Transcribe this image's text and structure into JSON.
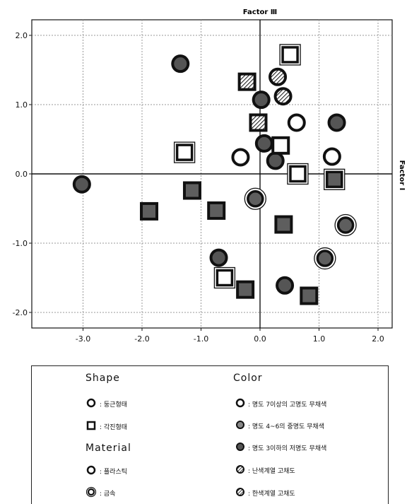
{
  "chart_data": {
    "type": "scatter",
    "xlabel": "",
    "ylabel": "",
    "top_axis_label": "Factor Ⅲ",
    "right_axis_label": "Factor Ⅰ",
    "xlim": [
      -3.9,
      2.4
    ],
    "ylim": [
      -2.2,
      2.2
    ],
    "xticks": [
      -3.0,
      -2.0,
      -1.0,
      0.0,
      1.0,
      2.0
    ],
    "yticks": [
      -2.0,
      -1.0,
      0.0,
      1.0,
      2.0
    ],
    "xtick_labels": [
      "-3.0",
      "-2.0",
      "-1.0",
      "0.0",
      "1.0",
      "2.0"
    ],
    "ytick_labels": [
      "-2.0",
      "-1.0",
      "0.0",
      "1.0",
      "2.0"
    ],
    "grid": true,
    "points": [
      {
        "x": -3.02,
        "y": -0.15,
        "shape": "circle",
        "material": "plastic",
        "color": "dark"
      },
      {
        "x": -1.35,
        "y": 1.59,
        "shape": "circle",
        "material": "plastic",
        "color": "dark"
      },
      {
        "x": -0.33,
        "y": 0.24,
        "shape": "circle",
        "material": "plastic",
        "color": "white"
      },
      {
        "x": 0.02,
        "y": 1.07,
        "shape": "circle",
        "material": "plastic",
        "color": "dark"
      },
      {
        "x": 0.07,
        "y": 0.44,
        "shape": "circle",
        "material": "plastic",
        "color": "dark"
      },
      {
        "x": 0.26,
        "y": 0.19,
        "shape": "circle",
        "material": "plastic",
        "color": "dark"
      },
      {
        "x": 0.3,
        "y": 1.4,
        "shape": "circle",
        "material": "plastic",
        "color": "cool"
      },
      {
        "x": 0.39,
        "y": 1.12,
        "shape": "circle",
        "material": "plastic",
        "color": "warm"
      },
      {
        "x": 0.62,
        "y": 0.74,
        "shape": "circle",
        "material": "plastic",
        "color": "white"
      },
      {
        "x": 1.22,
        "y": 0.25,
        "shape": "circle",
        "material": "plastic",
        "color": "white"
      },
      {
        "x": 1.3,
        "y": 0.74,
        "shape": "circle",
        "material": "plastic",
        "color": "dark"
      },
      {
        "x": -0.7,
        "y": -1.21,
        "shape": "circle",
        "material": "plastic",
        "color": "dark"
      },
      {
        "x": 0.42,
        "y": -1.61,
        "shape": "circle",
        "material": "plastic",
        "color": "dark"
      },
      {
        "x": -0.08,
        "y": -0.36,
        "shape": "circle",
        "material": "metal",
        "color": "mid"
      },
      {
        "x": 1.1,
        "y": -1.22,
        "shape": "circle",
        "material": "metal",
        "color": "mid"
      },
      {
        "x": 1.45,
        "y": -0.74,
        "shape": "circle",
        "material": "metal",
        "color": "mid"
      },
      {
        "x": -1.88,
        "y": -0.54,
        "shape": "square",
        "material": "plastic",
        "color": "mid"
      },
      {
        "x": -1.15,
        "y": -0.24,
        "shape": "square",
        "material": "plastic",
        "color": "mid"
      },
      {
        "x": -0.74,
        "y": -0.53,
        "shape": "square",
        "material": "plastic",
        "color": "mid"
      },
      {
        "x": -0.25,
        "y": -1.67,
        "shape": "square",
        "material": "plastic",
        "color": "mid"
      },
      {
        "x": 0.4,
        "y": -0.73,
        "shape": "square",
        "material": "plastic",
        "color": "mid"
      },
      {
        "x": 0.83,
        "y": -1.76,
        "shape": "square",
        "material": "plastic",
        "color": "mid"
      },
      {
        "x": -0.22,
        "y": 1.33,
        "shape": "square",
        "material": "plastic",
        "color": "cool"
      },
      {
        "x": -0.03,
        "y": 0.74,
        "shape": "square",
        "material": "plastic",
        "color": "warm"
      },
      {
        "x": 0.35,
        "y": 0.41,
        "shape": "square",
        "material": "plastic",
        "color": "white"
      },
      {
        "x": -1.28,
        "y": 0.31,
        "shape": "square",
        "material": "metal",
        "color": "white"
      },
      {
        "x": -0.6,
        "y": -1.5,
        "shape": "square",
        "material": "metal",
        "color": "white"
      },
      {
        "x": 0.51,
        "y": 1.72,
        "shape": "square",
        "material": "metal",
        "color": "white"
      },
      {
        "x": 0.64,
        "y": 0.0,
        "shape": "square",
        "material": "metal",
        "color": "white"
      },
      {
        "x": 1.26,
        "y": -0.08,
        "shape": "square",
        "material": "metal",
        "color": "mid"
      }
    ]
  },
  "legend": {
    "shape_title": "Shape",
    "shape_circle": ": 둥근형태",
    "shape_square": ": 각진형태",
    "material_title": "Material",
    "material_plastic": ": 플라스틱",
    "material_metal": ": 금속",
    "color_title": "Color",
    "color_white": ": 명도 7이상의 고명도 무채색",
    "color_mid": ":  명도 4~6의 중명도 무채색",
    "color_dark": ": 명도 3이하의 저명도 무채색",
    "color_warm": ": 난색계열 고채도",
    "color_cool": ": 한색계열 고채도"
  },
  "colors": {
    "white": "#ffffff",
    "mid": "#5e5e5e",
    "dark": "#555555",
    "stroke": "#111111",
    "grid": "#999999"
  }
}
